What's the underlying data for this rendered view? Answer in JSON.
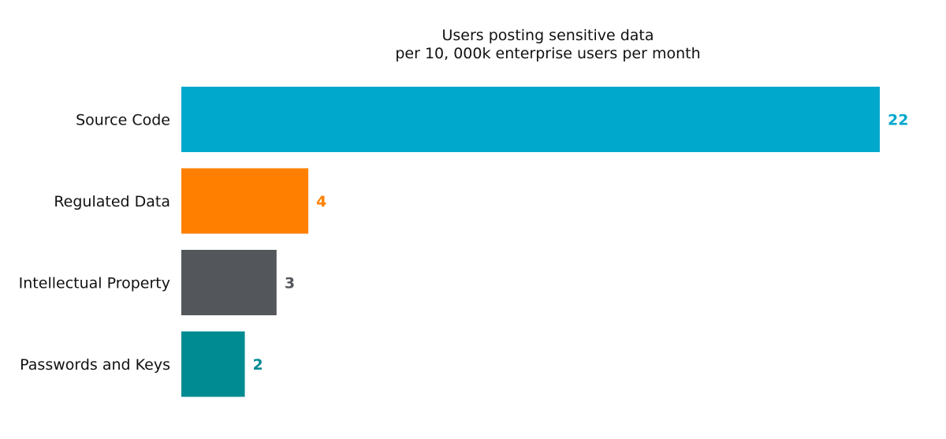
{
  "chart_data": {
    "type": "bar",
    "orientation": "horizontal",
    "title_lines": [
      "Users posting sensitive data",
      "per 10, 000k enterprise users per month"
    ],
    "categories": [
      "Source Code",
      "Regulated Data",
      "Intellectual Property",
      "Passwords and Keys"
    ],
    "values": [
      22,
      4,
      3,
      2
    ],
    "value_labels": [
      "22",
      "4",
      "3",
      "2"
    ],
    "colors": [
      "#00a8cc",
      "#ff8000",
      "#53565b",
      "#008b92"
    ],
    "xlabel": "",
    "ylabel": "",
    "xlim": [
      0,
      22
    ],
    "axes_visible": false,
    "grid": false,
    "legend": "none"
  }
}
